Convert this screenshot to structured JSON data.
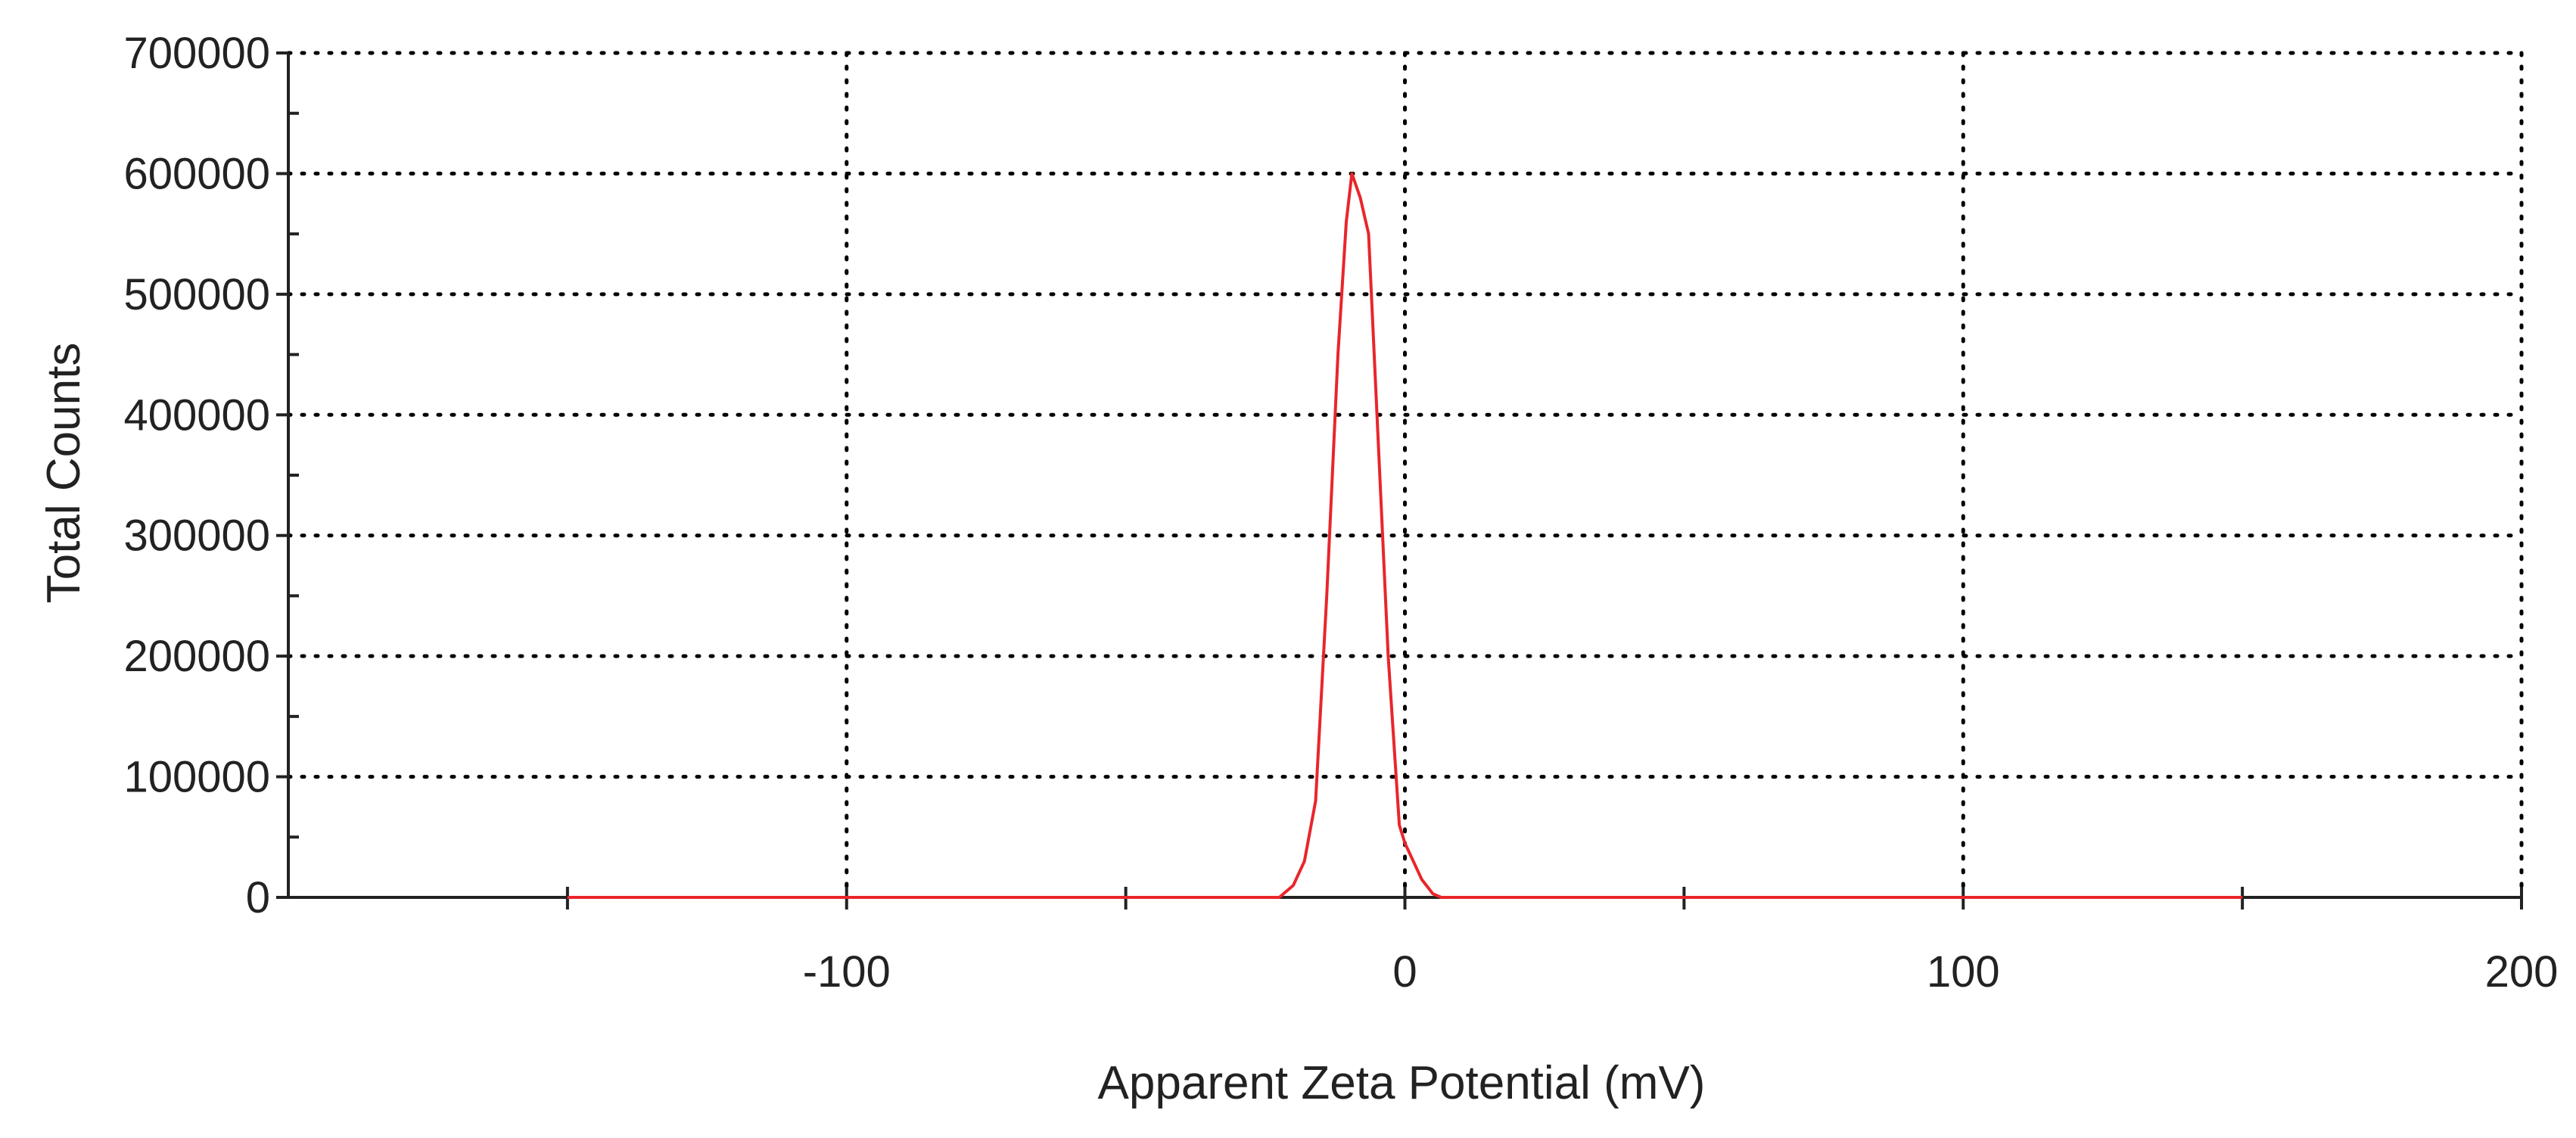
{
  "chart_data": {
    "type": "line",
    "title": "",
    "xlabel": "Apparent Zeta Potential (mV)",
    "ylabel": "Total Counts",
    "xlim": [
      -200,
      200
    ],
    "ylim": [
      0,
      700000
    ],
    "x_ticks": [
      -100,
      0,
      100,
      200
    ],
    "x_tick_labels": [
      "-100",
      "0",
      "100",
      "200"
    ],
    "x_minor_ticks": [
      -150,
      -50,
      50,
      150
    ],
    "y_ticks": [
      0,
      100000,
      200000,
      300000,
      400000,
      500000,
      600000,
      700000
    ],
    "y_tick_labels": [
      "0",
      "100000",
      "200000",
      "300000",
      "400000",
      "500000",
      "600000",
      "700000"
    ],
    "y_minor_step": 50000,
    "grid": true,
    "grid_style": "dotted",
    "colors": {
      "series": "#e8262b",
      "axis": "#222222",
      "grid": "#000000"
    },
    "series": [
      {
        "values_xy": [
          [
            -150,
            0
          ],
          [
            -100,
            0
          ],
          [
            -50,
            0
          ],
          [
            -22.5,
            0
          ],
          [
            -20,
            10000
          ],
          [
            -18,
            30000
          ],
          [
            -16,
            80000
          ],
          [
            -14,
            250000
          ],
          [
            -12,
            450000
          ],
          [
            -10.5,
            560000
          ],
          [
            -9.5,
            600000
          ],
          [
            -8,
            580000
          ],
          [
            -6.5,
            550000
          ],
          [
            -5,
            400000
          ],
          [
            -3,
            200000
          ],
          [
            -1,
            60000
          ],
          [
            0,
            45000
          ],
          [
            1.5,
            30000
          ],
          [
            3,
            15000
          ],
          [
            5,
            3000
          ],
          [
            6.5,
            0
          ],
          [
            50,
            0
          ],
          [
            100,
            0
          ],
          [
            150,
            0
          ]
        ]
      }
    ]
  }
}
